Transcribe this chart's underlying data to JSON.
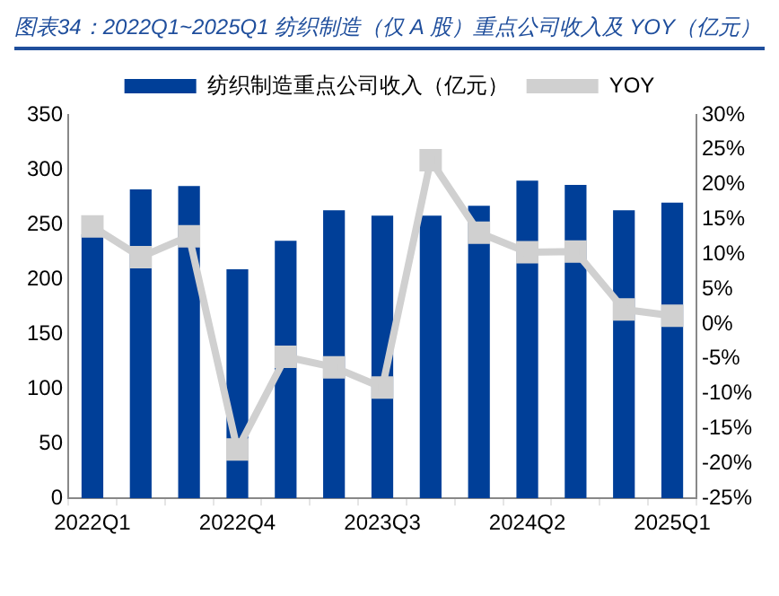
{
  "chart_data": {
    "type": "bar",
    "title": "图表34：2022Q1~2025Q1 纺织制造（仅 A 股）重点公司收入及 YOY（亿元）",
    "categories": [
      "2022Q1",
      null,
      null,
      "2022Q4",
      null,
      null,
      "2023Q3",
      null,
      null,
      "2024Q2",
      null,
      null,
      "2025Q1"
    ],
    "series": [
      {
        "name": "纺织制造重点公司收入（亿元）",
        "color": "#003f98",
        "values": [
          241,
          282,
          285,
          209,
          235,
          263,
          258,
          258,
          267,
          290,
          286,
          263,
          270
        ]
      },
      {
        "name": "YOY",
        "type": "line",
        "axis": "y2",
        "color": "#d0d0d0",
        "marker": "square",
        "values": [
          14,
          9.6,
          12.6,
          -18,
          -4.7,
          -6.2,
          -9.1,
          23.5,
          13.1,
          10.3,
          10.4,
          2.1,
          1.2
        ]
      }
    ],
    "ylim": [
      0,
      350
    ],
    "yticks": [
      0,
      50,
      100,
      150,
      200,
      250,
      300,
      350
    ],
    "y2lim": [
      -25,
      30
    ],
    "y2ticks": [
      {
        "value": -25,
        "label": "-25%"
      },
      {
        "value": -20,
        "label": "-20%"
      },
      {
        "value": -15,
        "label": "-15%"
      },
      {
        "value": -10,
        "label": "-10%"
      },
      {
        "value": -5,
        "label": "-5%"
      },
      {
        "value": 0,
        "label": "0%"
      },
      {
        "value": 5,
        "label": "5%"
      },
      {
        "value": 10,
        "label": "10%"
      },
      {
        "value": 15,
        "label": "15%"
      },
      {
        "value": 20,
        "label": "20%"
      },
      {
        "value": 25,
        "label": "25%"
      },
      {
        "value": 30,
        "label": "30%"
      }
    ],
    "grid": false,
    "legend": "top"
  }
}
